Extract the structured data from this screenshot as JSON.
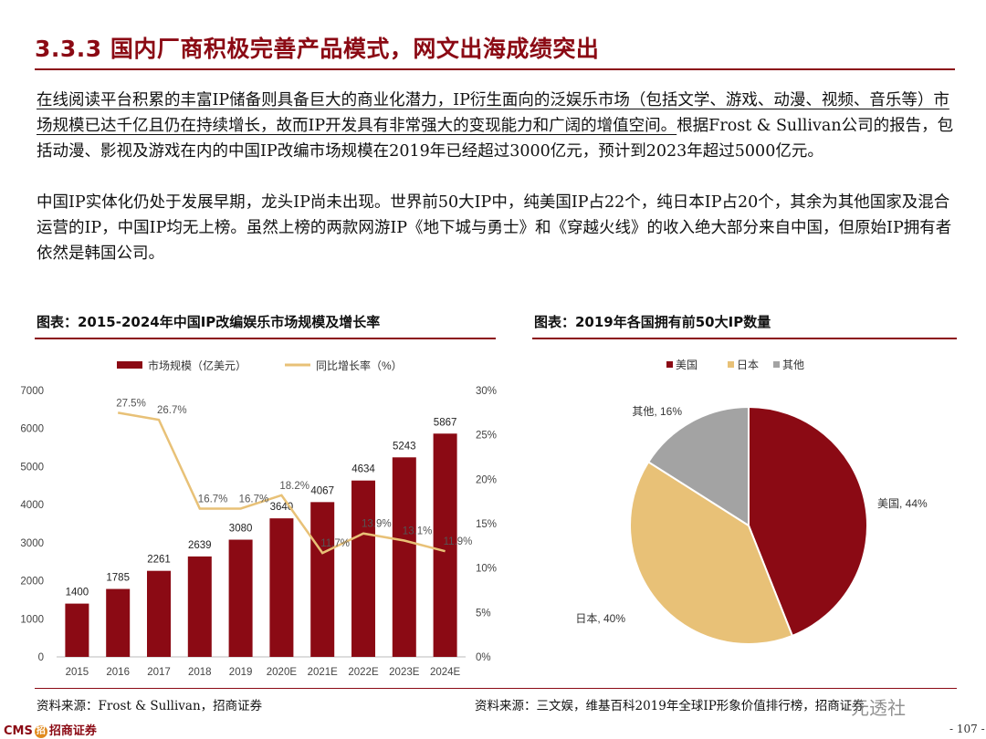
{
  "header": {
    "title": "3.3.3 国内厂商积极完善产品模式，网文出海成绩突出"
  },
  "body": {
    "p1_underlined": "在线阅读平台积累的丰富IP储备则具备巨大的商业化潜力，IP衍生面向的泛娱乐市场（包括文学、游戏、动漫、视频、音乐等）市场规模已达千亿且仍在持续增长，故而IP开发具有非常强大的变现能力和广阔的增值空间。",
    "p1_rest": "根据Frost & Sullivan公司的报告，包括动漫、影视及游戏在内的中国IP改编市场规模在2019年已经超过3000亿元，预计到2023年超过5000亿元。",
    "p2": "中国IP实体化仍处于发展早期，龙头IP尚未出现。世界前50大IP中，纯美国IP占22个，纯日本IP占20个，其余为其他国家及混合运营的IP，中国IP均无上榜。虽然上榜的两款网游IP《地下城与勇士》和《穿越火线》的收入绝大部分来自中国，但原始IP拥有者依然是韩国公司。"
  },
  "figure1": {
    "title": "图表：2015-2024年中国IP改编娱乐市场规模及增长率",
    "source": "资料来源：Frost & Sullivan，招商证券"
  },
  "figure2": {
    "title": "图表：2019年各国拥有前50大IP数量",
    "source": "资料来源：三文娱，维基百科2019年全球IP形象价值排行榜，招商证券"
  },
  "footer": {
    "brand_cms": "CMS",
    "brand_mark": "招",
    "brand_name": "招商证券",
    "page": "- 107 -",
    "watermark": "元透社"
  },
  "colors": {
    "accent": "#8b0a14",
    "bar": "#8b0a14",
    "line": "#e8c177",
    "japan": "#e8c177",
    "other": "#a3a3a3"
  },
  "chart_data": [
    {
      "type": "bar",
      "legend": [
        "市场规模（亿美元）",
        "同比增长率（%）"
      ],
      "categories": [
        "2015",
        "2016",
        "2017",
        "2018",
        "2019",
        "2020E",
        "2021E",
        "2022E",
        "2023E",
        "2024E"
      ],
      "series": [
        {
          "name": "市场规模（亿美元）",
          "values": [
            1400,
            1785,
            2261,
            2639,
            3080,
            3640,
            4067,
            4634,
            5243,
            5867
          ]
        },
        {
          "name": "同比增长率（%）",
          "type": "line",
          "axis": "right",
          "x": [
            "2016",
            "2017",
            "2018",
            "2019",
            "2020E",
            "2021E",
            "2022E",
            "2023E",
            "2024E"
          ],
          "values": [
            27.5,
            26.7,
            16.7,
            16.7,
            18.2,
            11.7,
            13.9,
            13.1,
            11.9
          ]
        }
      ],
      "y_left_ticks": [
        "0",
        "1000",
        "2000",
        "3000",
        "4000",
        "5000",
        "6000",
        "7000"
      ],
      "y_right_ticks": [
        "0%",
        "5%",
        "10%",
        "15%",
        "20%",
        "25%",
        "30%"
      ],
      "ylim": [
        0,
        7000
      ],
      "y2lim": [
        0,
        30
      ],
      "bar_labels": [
        "1400",
        "1785",
        "2261",
        "2639",
        "3080",
        "3640",
        "4067",
        "4634",
        "5243",
        "5867"
      ],
      "line_labels": [
        "27.5%",
        "26.7%",
        "16.7%",
        "16.7%",
        "18.2%",
        "11.7%",
        "13.9%",
        "13.1%",
        "11.9%"
      ]
    },
    {
      "type": "pie",
      "legend": [
        "美国",
        "日本",
        "其他"
      ],
      "slices": [
        {
          "name": "美国",
          "value": 44,
          "label": "美国, 44%"
        },
        {
          "name": "日本",
          "value": 40,
          "label": "日本, 40%"
        },
        {
          "name": "其他",
          "value": 16,
          "label": "其他, 16%"
        }
      ]
    }
  ]
}
